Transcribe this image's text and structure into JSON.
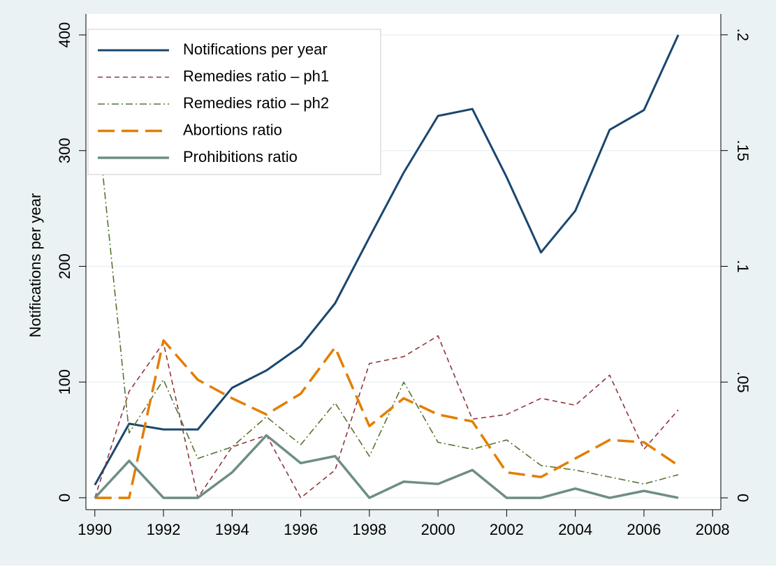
{
  "chart_data": {
    "type": "line",
    "y_label": "Notifications per year",
    "x": [
      1990,
      1991,
      1992,
      1993,
      1994,
      1995,
      1996,
      1997,
      1998,
      1999,
      2000,
      2001,
      2002,
      2003,
      2004,
      2005,
      2006,
      2007
    ],
    "xlim": [
      1989.74,
      2008.24
    ],
    "xticks": [
      1990,
      1992,
      1994,
      1996,
      1998,
      2000,
      2002,
      2004,
      2006,
      2008
    ],
    "ylim": [
      -10.3,
      418.1
    ],
    "yticks": [
      0,
      100,
      200,
      300,
      400
    ],
    "y2lim": [
      -0.0051,
      0.209
    ],
    "y2ticks": [
      0,
      {
        "value": 0.05,
        "label": ".05"
      },
      {
        "value": 0.1,
        "label": ".1"
      },
      {
        "value": 0.15,
        "label": ".15"
      },
      {
        "value": 0.2,
        "label": ".2"
      }
    ],
    "grid": true,
    "legend_position": "top-left",
    "series": [
      {
        "name": "Notifications per year",
        "color": "#1a476f",
        "dash": "solid",
        "values": [
          11,
          64,
          59,
          59,
          95,
          110,
          131,
          168,
          225,
          281,
          330,
          336,
          277,
          212,
          248,
          318,
          335,
          400
        ]
      },
      {
        "name": "Remedies ratio – ph1",
        "color": "#90353b",
        "dash": "dash",
        "axis": "y2",
        "values": [
          0,
          0.046,
          0.067,
          0,
          0.022,
          0.027,
          0,
          0.012,
          0.058,
          0.061,
          0.07,
          0.034,
          0.036,
          0.043,
          0.04,
          0.053,
          0.021,
          0.038
        ]
      },
      {
        "name": "Remedies ratio – ph2",
        "color": "#55752f",
        "dash": "dashdot",
        "axis": "y2",
        "values": [
          0.174,
          0.028,
          0.051,
          0.017,
          0.022,
          0.035,
          0.023,
          0.041,
          0.018,
          0.05,
          0.024,
          0.021,
          0.025,
          0.014,
          0.012,
          0.009,
          0.006,
          0.01
        ]
      },
      {
        "name": "Abortions ratio",
        "color": "#e37e00",
        "dash": "longdash",
        "axis": "y2",
        "values": [
          0,
          0,
          0.068,
          0.051,
          0.043,
          0.036,
          0.045,
          0.065,
          0.031,
          0.043,
          0.036,
          0.033,
          0.011,
          0.009,
          0.017,
          0.025,
          0.024,
          0.014
        ]
      },
      {
        "name": "Prohibitions ratio",
        "color": "#6e8e84",
        "dash": "solid",
        "axis": "y2",
        "values": [
          0,
          0.016,
          0,
          0,
          0.011,
          0.027,
          0.015,
          0.018,
          0,
          0.007,
          0.006,
          0.012,
          0,
          0,
          0.004,
          0,
          0.003,
          0
        ]
      }
    ]
  }
}
